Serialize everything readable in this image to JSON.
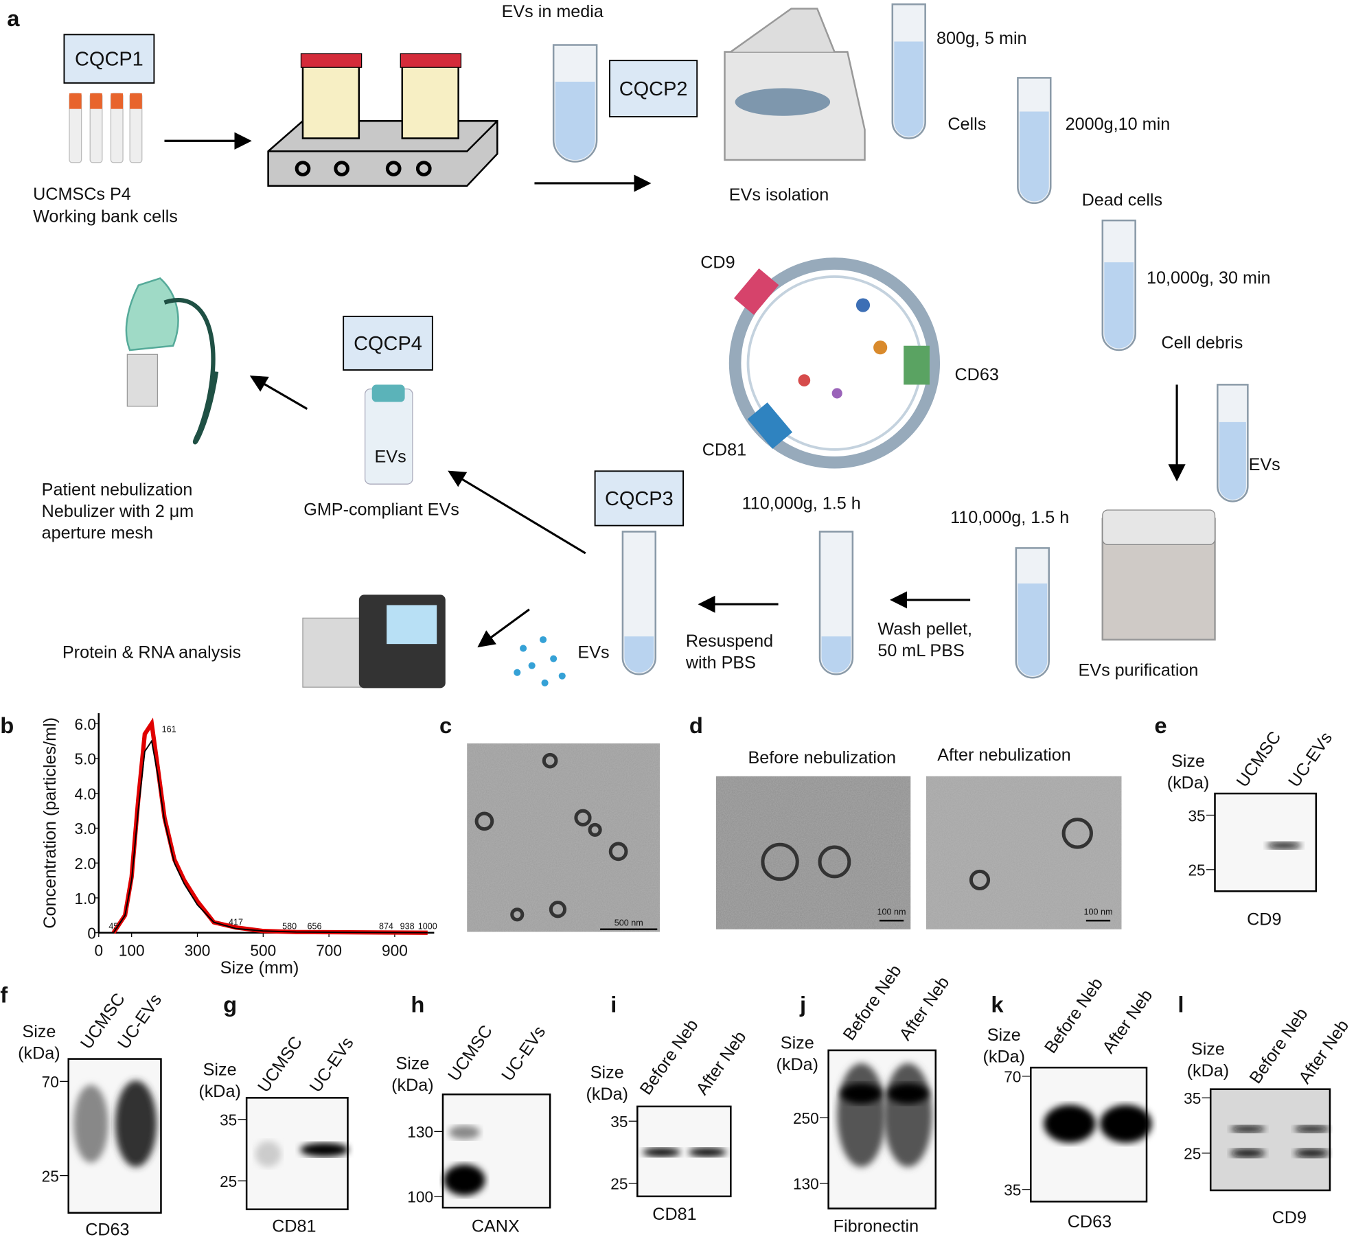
{
  "panel_a": {
    "label": "a",
    "boxes": [
      "CQCP1",
      "CQCP2",
      "CQCP3",
      "CQCP4"
    ],
    "texts": [
      "EVs in media",
      "UCMSCs P4",
      "Working bank cells",
      "EVs isolation",
      "800g, 5 min",
      "Cells",
      "2000g,10 min",
      "Dead cells",
      "10,000g, 30 min",
      "Cell debris",
      "EVs",
      "EVs purification",
      "110,000g, 1.5 h",
      "Wash pellet,",
      "50 mL PBS",
      "110,000g, 1.5 h",
      "Resuspend",
      "with PBS",
      "EVs",
      "Protein & RNA analysis",
      "GMP-compliant EVs",
      "EVs",
      "Patient nebulization",
      "Nebulizer with 2 μm",
      "aperture mesh",
      "CD9",
      "CD63",
      "CD81"
    ]
  },
  "panel_b": {
    "label": "b",
    "chart_data": {
      "type": "line",
      "ylabel": "Concentration (particles/ml)",
      "xlabel": "Size (mm)",
      "x": [
        45,
        80,
        100,
        120,
        140,
        161,
        180,
        200,
        230,
        260,
        300,
        350,
        417,
        500,
        600,
        1000
      ],
      "series": [
        {
          "color": "#e00000",
          "values": [
            0,
            0.5,
            1.6,
            3.8,
            5.7,
            6.0,
            4.7,
            3.3,
            2.1,
            1.5,
            0.9,
            0.3,
            0.15,
            0.05,
            0.02,
            0
          ]
        },
        {
          "color": "#000000",
          "values": [
            0,
            0.5,
            1.5,
            3.5,
            5.2,
            5.5,
            4.5,
            3.2,
            2.0,
            1.4,
            0.8,
            0.3,
            0.12,
            0.05,
            0.02,
            0
          ]
        }
      ],
      "xlim": [
        0,
        1020
      ],
      "ylim": [
        0,
        6.3
      ],
      "xticks": [
        0,
        100,
        300,
        500,
        700,
        900
      ],
      "yticks": [
        {
          "value": 0,
          "label": "0"
        },
        {
          "value": 1,
          "label": "1.0"
        },
        {
          "value": 2,
          "label": "2.0"
        },
        {
          "value": 3,
          "label": "3.0"
        },
        {
          "value": 4,
          "label": "4.0"
        },
        {
          "value": 5,
          "label": "5.0"
        },
        {
          "value": 6,
          "label": "6.0"
        }
      ],
      "peaks": [
        45,
        161,
        417,
        580,
        656,
        874,
        938,
        1000
      ]
    }
  },
  "panel_c": {
    "label": "c",
    "scale": "500 nm"
  },
  "panel_d": {
    "label": "d",
    "titles": [
      "Before nebulization",
      "After nebulization"
    ],
    "scales": [
      "100 nm",
      "100 nm"
    ]
  },
  "blots": [
    {
      "label": "e",
      "size_label": "Size",
      "unit": "(kDa)",
      "lanes": [
        "UCMSC",
        "UC-EVs"
      ],
      "ticks": [
        35,
        25
      ],
      "protein": "CD9"
    },
    {
      "label": "f",
      "size_label": "Size",
      "unit": "(kDa)",
      "lanes": [
        "UCMSC",
        "UC-EVs"
      ],
      "ticks": [
        70,
        25
      ],
      "protein": "CD63"
    },
    {
      "label": "g",
      "size_label": "Size",
      "unit": "(kDa)",
      "lanes": [
        "UCMSC",
        "UC-EVs"
      ],
      "ticks": [
        35,
        25
      ],
      "protein": "CD81"
    },
    {
      "label": "h",
      "size_label": "Size",
      "unit": "(kDa)",
      "lanes": [
        "UCMSC",
        "UC-EVs"
      ],
      "ticks": [
        130,
        100
      ],
      "protein": "CANX"
    },
    {
      "label": "i",
      "size_label": "Size",
      "unit": "(kDa)",
      "lanes": [
        "Before Neb",
        "After Neb"
      ],
      "ticks": [
        35,
        25
      ],
      "protein": "CD81"
    },
    {
      "label": "j",
      "size_label": "Size",
      "unit": "(kDa)",
      "lanes": [
        "Before Neb",
        "After Neb"
      ],
      "ticks": [
        250,
        130
      ],
      "protein": "Fibronectin"
    },
    {
      "label": "k",
      "size_label": "Size",
      "unit": "(kDa)",
      "lanes": [
        "Before Neb",
        "After Neb"
      ],
      "ticks": [
        70,
        35
      ],
      "protein": "CD63"
    },
    {
      "label": "l",
      "size_label": "Size",
      "unit": "(kDa)",
      "lanes": [
        "Before Neb",
        "After Neb"
      ],
      "ticks": [
        35,
        25
      ],
      "protein": "CD9"
    }
  ]
}
